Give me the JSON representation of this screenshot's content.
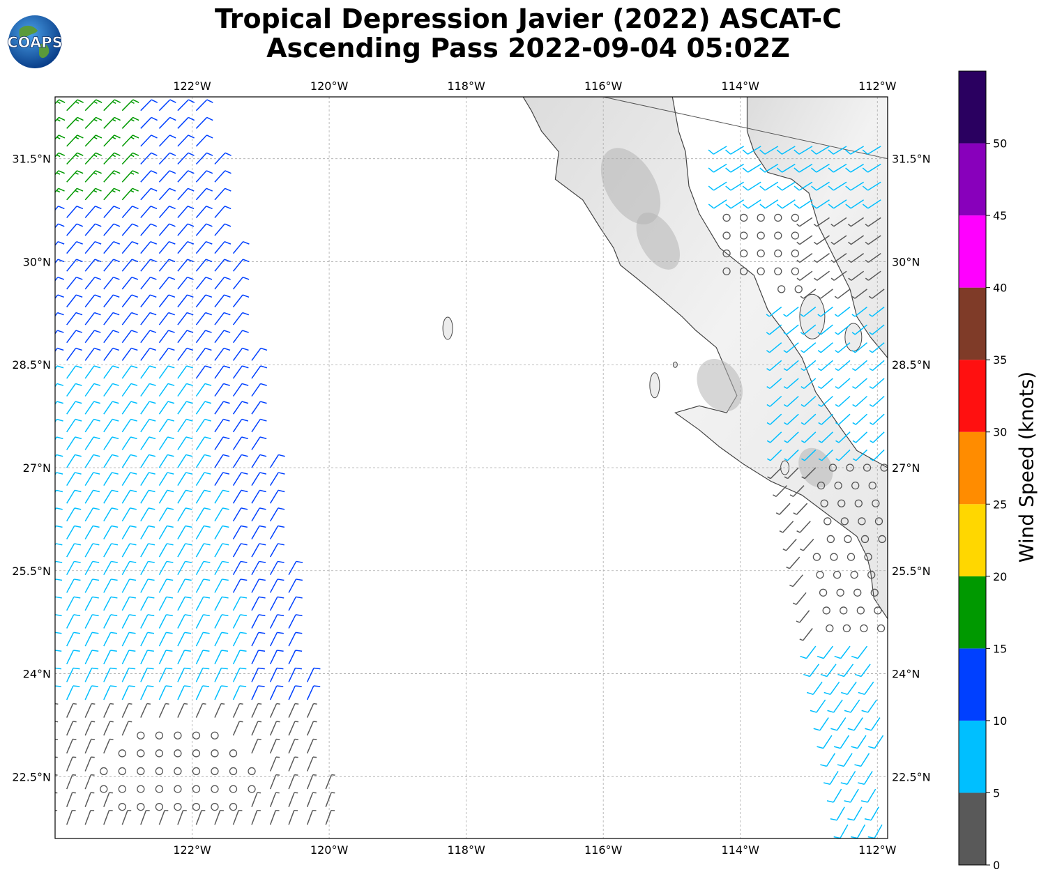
{
  "title": {
    "line1": "Tropical Depression Javier (2022) ASCAT-C",
    "line2": "Ascending Pass 2022-09-04 05:02Z"
  },
  "logo": {
    "text": "COAPS",
    "icon": "globe-logo-icon"
  },
  "map": {
    "lon_range": [
      -124,
      -111.85
    ],
    "lat_range": [
      21.6,
      32.4
    ],
    "lon_ticks": [
      {
        "value": -122,
        "label": "122°W"
      },
      {
        "value": -120,
        "label": "120°W"
      },
      {
        "value": -118,
        "label": "118°W"
      },
      {
        "value": -116,
        "label": "116°W"
      },
      {
        "value": -114,
        "label": "114°W"
      },
      {
        "value": -112,
        "label": "112°W"
      }
    ],
    "lat_ticks": [
      {
        "value": 31.5,
        "label": "31.5°N"
      },
      {
        "value": 30,
        "label": "30°N"
      },
      {
        "value": 28.5,
        "label": "28.5°N"
      },
      {
        "value": 27,
        "label": "27°N"
      },
      {
        "value": 25.5,
        "label": "25.5°N"
      },
      {
        "value": 24,
        "label": "24°N"
      },
      {
        "value": 22.5,
        "label": "22.5°N"
      }
    ],
    "grid": true,
    "land_color": "#e8e8e8",
    "coast_color": "#444444"
  },
  "colorbar": {
    "label": "Wind Speed (knots)",
    "bins": [
      {
        "min": 0,
        "max": 5,
        "color": "#595959"
      },
      {
        "min": 5,
        "max": 10,
        "color": "#00bfff"
      },
      {
        "min": 10,
        "max": 15,
        "color": "#0040ff"
      },
      {
        "min": 15,
        "max": 20,
        "color": "#009900"
      },
      {
        "min": 20,
        "max": 25,
        "color": "#ffd700"
      },
      {
        "min": 25,
        "max": 30,
        "color": "#ff8c00"
      },
      {
        "min": 30,
        "max": 35,
        "color": "#ff1010"
      },
      {
        "min": 35,
        "max": 40,
        "color": "#7f3b28"
      },
      {
        "min": 40,
        "max": 45,
        "color": "#ff00ff"
      },
      {
        "min": 45,
        "max": 50,
        "color": "#8800bb"
      },
      {
        "min": 50,
        "max": 55,
        "color": "#2a0060"
      }
    ],
    "tick_labels": [
      "0",
      "5",
      "10",
      "15",
      "20",
      "25",
      "30",
      "35",
      "40",
      "45",
      "50"
    ]
  }
}
